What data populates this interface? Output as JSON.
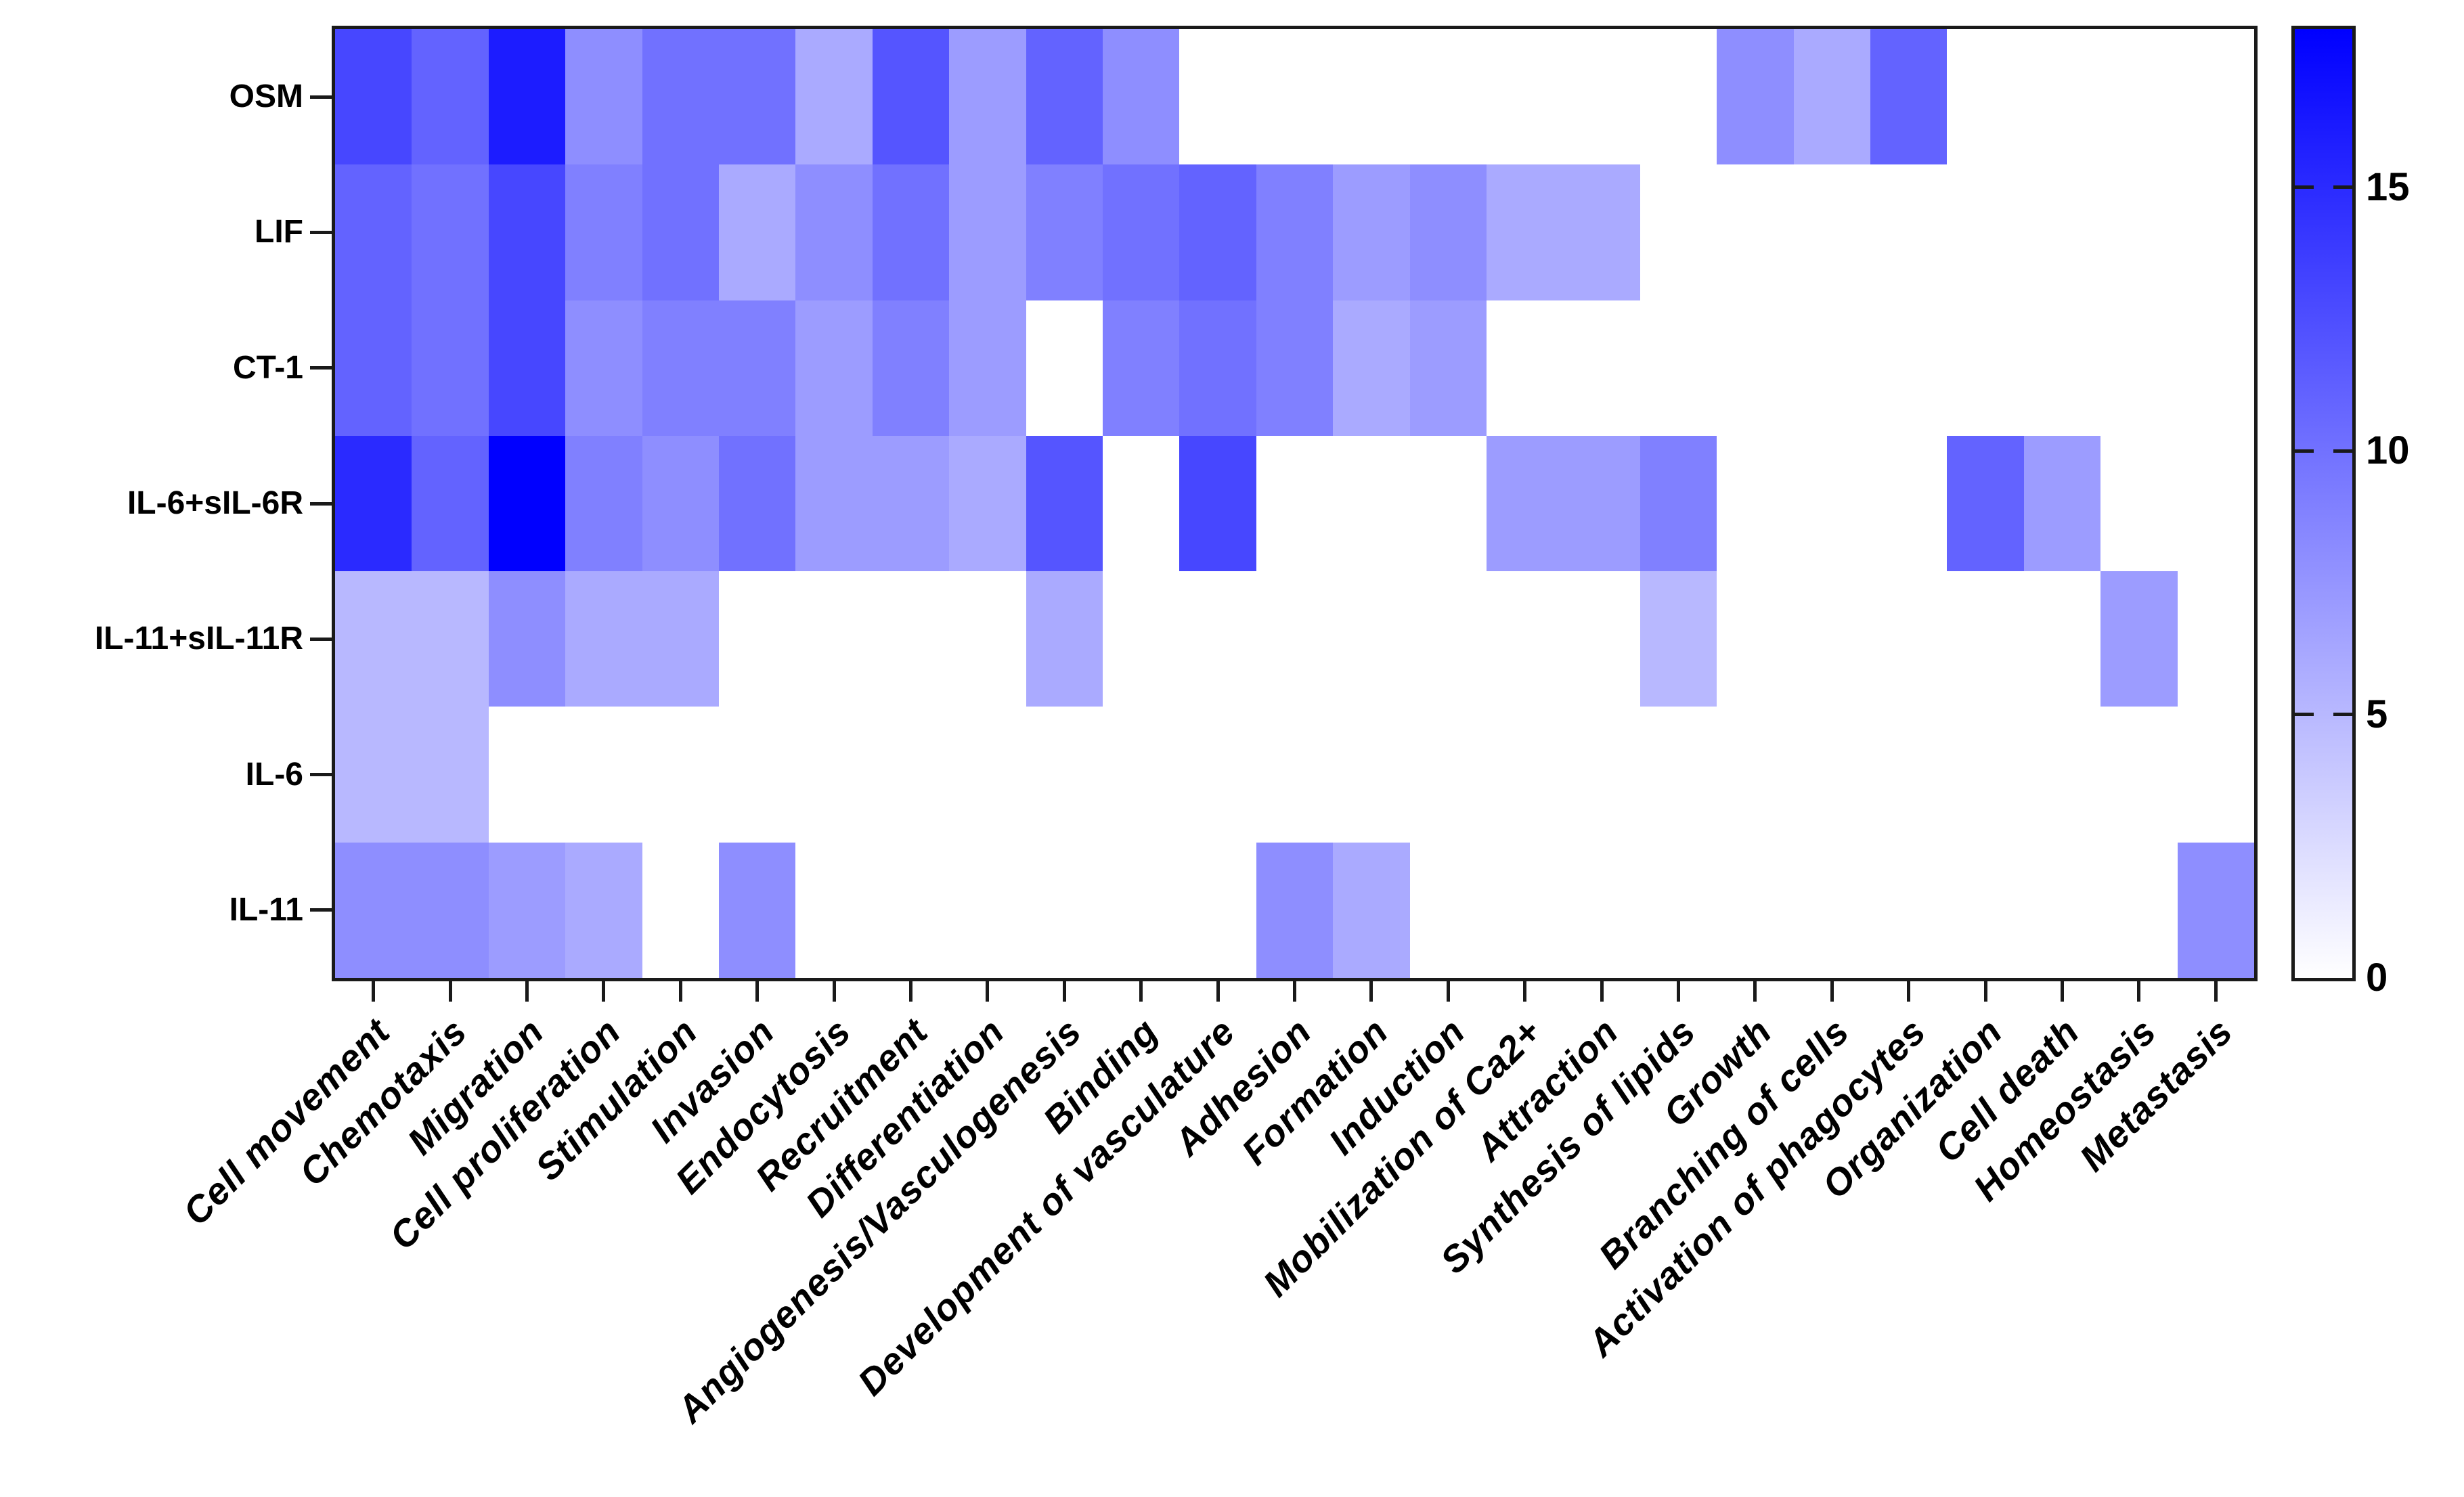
{
  "figure": {
    "title": "",
    "background": "#ffffff",
    "axis_color": "#1a1a1a"
  },
  "chart_data": {
    "type": "heatmap",
    "title": "",
    "xlabel": "",
    "ylabel": "",
    "grid": false,
    "legend_position": "right-colorbar",
    "x_categories": [
      "Cell movement",
      "Chemotaxis",
      "Migration",
      "Cell proliferation",
      "Stimulation",
      "Invasion",
      "Endocytosis",
      "Recruitment",
      "Differentiation",
      "Angiogenesis/Vasculogenesis",
      "Binding",
      "Development of vasculature",
      "Adhesion",
      "Formation",
      "Induction",
      "Mobilization of Ca2+",
      "Attraction",
      "Synthesis of lipids",
      "Growth",
      "Branching of cells",
      "Activation of phagocytes",
      "Organization",
      "Cell death",
      "Homeostasis",
      "Metastasis"
    ],
    "y_categories": [
      "OSM",
      "LIF",
      "CT-1",
      "IL-6+sIL-6R",
      "IL-11+sIL-11R",
      "IL-6",
      "IL-11"
    ],
    "series": [
      {
        "name": "OSM",
        "values": [
          13,
          11,
          16,
          8,
          10,
          10,
          6,
          12,
          7,
          11,
          8,
          0,
          0,
          0,
          0,
          0,
          0,
          0,
          8,
          6,
          11,
          0,
          0,
          0,
          0
        ]
      },
      {
        "name": "LIF",
        "values": [
          11,
          10,
          13,
          9,
          10,
          6,
          8,
          10,
          7,
          9,
          10,
          11,
          9,
          7,
          8,
          6,
          6,
          0,
          0,
          0,
          0,
          0,
          0,
          0,
          0
        ]
      },
      {
        "name": "CT-1",
        "values": [
          11,
          10,
          13,
          8,
          9,
          9,
          7,
          9,
          7,
          0,
          9,
          10,
          9,
          6,
          7,
          0,
          0,
          0,
          0,
          0,
          0,
          0,
          0,
          0,
          0
        ]
      },
      {
        "name": "IL-6+sIL-6R",
        "values": [
          15,
          11,
          18,
          9,
          8,
          10,
          7,
          7,
          6,
          12,
          0,
          13,
          0,
          0,
          0,
          7,
          7,
          9,
          0,
          0,
          0,
          11,
          7,
          0,
          0
        ]
      },
      {
        "name": "IL-11+sIL-11R",
        "values": [
          5,
          5,
          8,
          6,
          6,
          0,
          0,
          0,
          0,
          6,
          0,
          0,
          0,
          0,
          0,
          0,
          0,
          5,
          0,
          0,
          0,
          0,
          0,
          7,
          0
        ]
      },
      {
        "name": "IL-6",
        "values": [
          5,
          5,
          0,
          0,
          0,
          0,
          0,
          0,
          0,
          0,
          0,
          0,
          0,
          0,
          0,
          0,
          0,
          0,
          0,
          0,
          0,
          0,
          0,
          0,
          0
        ]
      },
      {
        "name": "IL-11",
        "values": [
          8,
          8,
          7,
          6,
          0,
          8,
          0,
          0,
          0,
          0,
          0,
          0,
          8,
          6,
          0,
          0,
          0,
          0,
          0,
          0,
          0,
          0,
          0,
          0,
          8
        ]
      }
    ],
    "colorbar": {
      "ticks": [
        0,
        5,
        10,
        15
      ],
      "vmin": 0,
      "vmax": 18,
      "color_low": "#ffffff",
      "color_high": "#0000ff"
    }
  }
}
